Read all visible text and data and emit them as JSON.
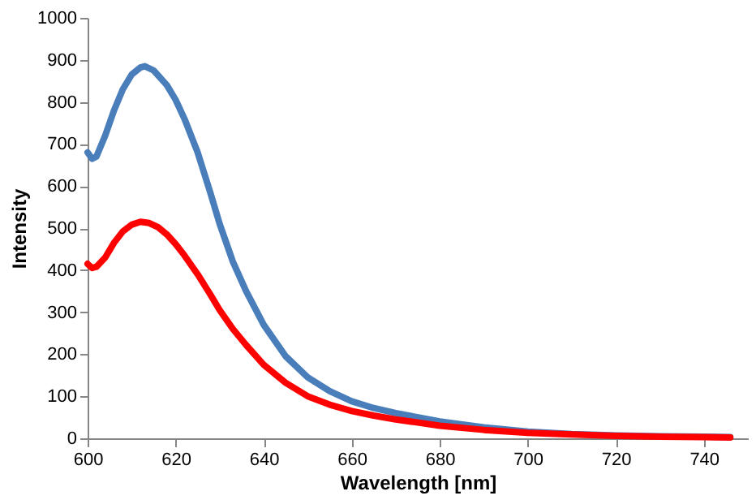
{
  "chart_data": {
    "type": "line",
    "xlabel": "Wavelength [nm]",
    "ylabel": "Intensity",
    "xlim": [
      600,
      750
    ],
    "xticks": [
      600,
      620,
      640,
      660,
      680,
      700,
      720,
      740
    ],
    "ylim": [
      0,
      1000
    ],
    "yticks": [
      0,
      100,
      200,
      300,
      400,
      500,
      600,
      700,
      800,
      900,
      1000
    ],
    "grid": false,
    "marker": "none",
    "line_style": "solid",
    "series": [
      {
        "color": "#4a7ebb",
        "x": [
          600,
          601,
          602,
          604,
          606,
          608,
          610,
          612,
          613,
          615,
          618,
          620,
          622,
          625,
          628,
          630,
          633,
          636,
          640,
          645,
          650,
          655,
          660,
          665,
          670,
          680,
          690,
          700,
          710,
          720,
          730,
          740,
          746
        ],
        "values": [
          680,
          665,
          670,
          720,
          780,
          830,
          865,
          882,
          885,
          875,
          840,
          805,
          760,
          680,
          580,
          510,
          420,
          350,
          270,
          195,
          145,
          112,
          88,
          72,
          60,
          40,
          26,
          16,
          10,
          7,
          5,
          4,
          3
        ]
      },
      {
        "color": "#ff0000",
        "x": [
          600,
          601,
          602,
          604,
          606,
          608,
          610,
          612,
          614,
          616,
          618,
          620,
          622,
          625,
          628,
          630,
          633,
          636,
          640,
          645,
          650,
          655,
          660,
          665,
          670,
          680,
          690,
          700,
          710,
          720,
          730,
          740,
          746
        ],
        "values": [
          415,
          405,
          408,
          430,
          465,
          492,
          508,
          515,
          512,
          502,
          485,
          462,
          435,
          390,
          340,
          305,
          260,
          222,
          175,
          132,
          100,
          80,
          65,
          54,
          45,
          30,
          20,
          13,
          9,
          6,
          4,
          3,
          2
        ]
      }
    ]
  }
}
